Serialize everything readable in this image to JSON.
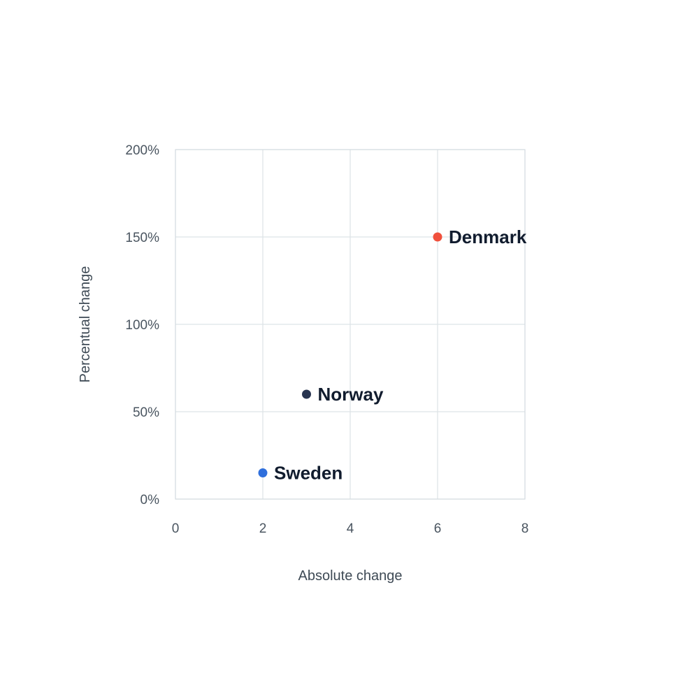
{
  "chart_data": {
    "type": "scatter",
    "xlabel": "Absolute change",
    "ylabel": "Percentual change",
    "xlim": [
      0,
      8
    ],
    "ylim": [
      0,
      200
    ],
    "x_ticks": [
      0,
      2,
      4,
      6,
      8
    ],
    "x_tick_labels": [
      "0",
      "2",
      "4",
      "6",
      "8"
    ],
    "y_ticks": [
      0,
      50,
      100,
      150,
      200
    ],
    "y_tick_labels": [
      "0%",
      "50%",
      "100%",
      "150%",
      "200%"
    ],
    "grid": true,
    "legend": "none",
    "points": [
      {
        "label": "Denmark",
        "x": 6,
        "y": 150,
        "color": "#f0503c"
      },
      {
        "label": "Norway",
        "x": 3,
        "y": 60,
        "color": "#283450"
      },
      {
        "label": "Sweden",
        "x": 2,
        "y": 15,
        "color": "#2f6fdc"
      }
    ]
  }
}
